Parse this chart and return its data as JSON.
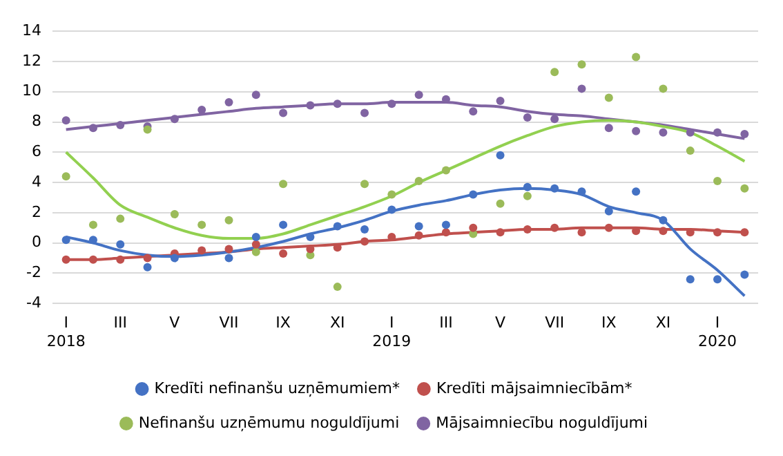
{
  "chart_data": {
    "type": "scatter",
    "categories": [
      "I\n2018",
      null,
      "III",
      null,
      "V",
      null,
      "VII",
      null,
      "IX",
      null,
      "XI",
      null,
      "I\n2019",
      null,
      "III",
      null,
      "V",
      null,
      "VII",
      null,
      "IX",
      null,
      "XI",
      null,
      "I\n2020",
      null
    ],
    "series": [
      {
        "name": "Kredīti nefinanšu uzņēmumiem*",
        "color": "#4472c4",
        "values": [
          0.2,
          0.2,
          -0.1,
          -1.6,
          -1.0,
          null,
          -1.0,
          0.4,
          1.2,
          0.4,
          1.1,
          0.9,
          2.2,
          1.1,
          1.2,
          3.2,
          5.8,
          3.7,
          3.6,
          3.4,
          2.1,
          3.4,
          1.5,
          -2.4,
          -2.4,
          -2.1
        ]
      },
      {
        "name": "Kredīti mājsaimniecībām*",
        "color": "#c0504d",
        "values": [
          -1.1,
          -1.1,
          -1.1,
          -1.0,
          -0.7,
          -0.5,
          -0.4,
          -0.1,
          -0.7,
          -0.4,
          -0.3,
          0.1,
          0.4,
          0.5,
          0.7,
          1.0,
          0.7,
          0.9,
          1.0,
          0.7,
          1.0,
          0.8,
          0.8,
          0.7,
          0.7,
          0.7
        ]
      },
      {
        "name": "Nefinanšu uzņēmumu noguldījumi",
        "color": "#9bbb59",
        "values": [
          4.4,
          1.2,
          1.6,
          7.5,
          1.9,
          1.2,
          1.5,
          -0.6,
          3.9,
          -0.8,
          -2.9,
          3.9,
          3.2,
          4.1,
          4.8,
          0.6,
          2.6,
          3.1,
          11.3,
          11.8,
          9.6,
          12.3,
          10.2,
          6.1,
          4.1,
          3.6
        ]
      },
      {
        "name": "Mājsaimniecību noguldījumi",
        "color": "#8064a2",
        "values": [
          8.1,
          7.6,
          7.8,
          7.7,
          8.2,
          8.8,
          9.3,
          9.8,
          8.6,
          9.1,
          9.2,
          8.6,
          9.2,
          9.8,
          9.5,
          8.7,
          9.4,
          8.3,
          8.2,
          10.2,
          7.6,
          7.4,
          7.3,
          7.3,
          7.3,
          7.2
        ]
      },
      {
        "type": "line",
        "marker": "none",
        "color": "#4472c4",
        "values": [
          0.4,
          0.0,
          -0.5,
          -0.8,
          -0.9,
          -0.8,
          -0.6,
          -0.3,
          0.1,
          0.6,
          1.0,
          1.5,
          2.1,
          2.5,
          2.8,
          3.2,
          3.5,
          3.6,
          3.5,
          3.2,
          2.4,
          2.0,
          1.5,
          -0.4,
          -1.8,
          -3.5
        ]
      },
      {
        "type": "line",
        "marker": "none",
        "color": "#c0504d",
        "values": [
          -1.1,
          -1.1,
          -1.0,
          -0.9,
          -0.8,
          -0.7,
          -0.6,
          -0.4,
          -0.3,
          -0.2,
          -0.1,
          0.1,
          0.2,
          0.4,
          0.6,
          0.7,
          0.8,
          0.9,
          0.9,
          1.0,
          1.0,
          1.0,
          0.9,
          0.9,
          0.8,
          0.7
        ]
      },
      {
        "type": "line",
        "marker": "none",
        "color": "#92d050",
        "values": [
          6.0,
          4.3,
          2.5,
          1.7,
          1.0,
          0.5,
          0.3,
          0.3,
          0.6,
          1.2,
          1.8,
          2.4,
          3.1,
          4.0,
          4.8,
          5.6,
          6.4,
          7.1,
          7.7,
          8.0,
          8.1,
          8.0,
          7.7,
          7.3,
          6.4,
          5.4
        ]
      },
      {
        "type": "line",
        "marker": "none",
        "color": "#8064a2",
        "values": [
          7.5,
          7.7,
          7.9,
          8.1,
          8.3,
          8.5,
          8.7,
          8.9,
          9.0,
          9.1,
          9.2,
          9.2,
          9.3,
          9.3,
          9.3,
          9.1,
          9.0,
          8.7,
          8.5,
          8.4,
          8.2,
          8.0,
          7.8,
          7.5,
          7.2,
          6.9
        ]
      }
    ],
    "ylim": [
      -4,
      14
    ],
    "yticks": [
      -4,
      -2,
      0,
      2,
      4,
      6,
      8,
      10,
      12,
      14
    ],
    "grid": "y",
    "legend": "bottom",
    "marker": "circle"
  }
}
